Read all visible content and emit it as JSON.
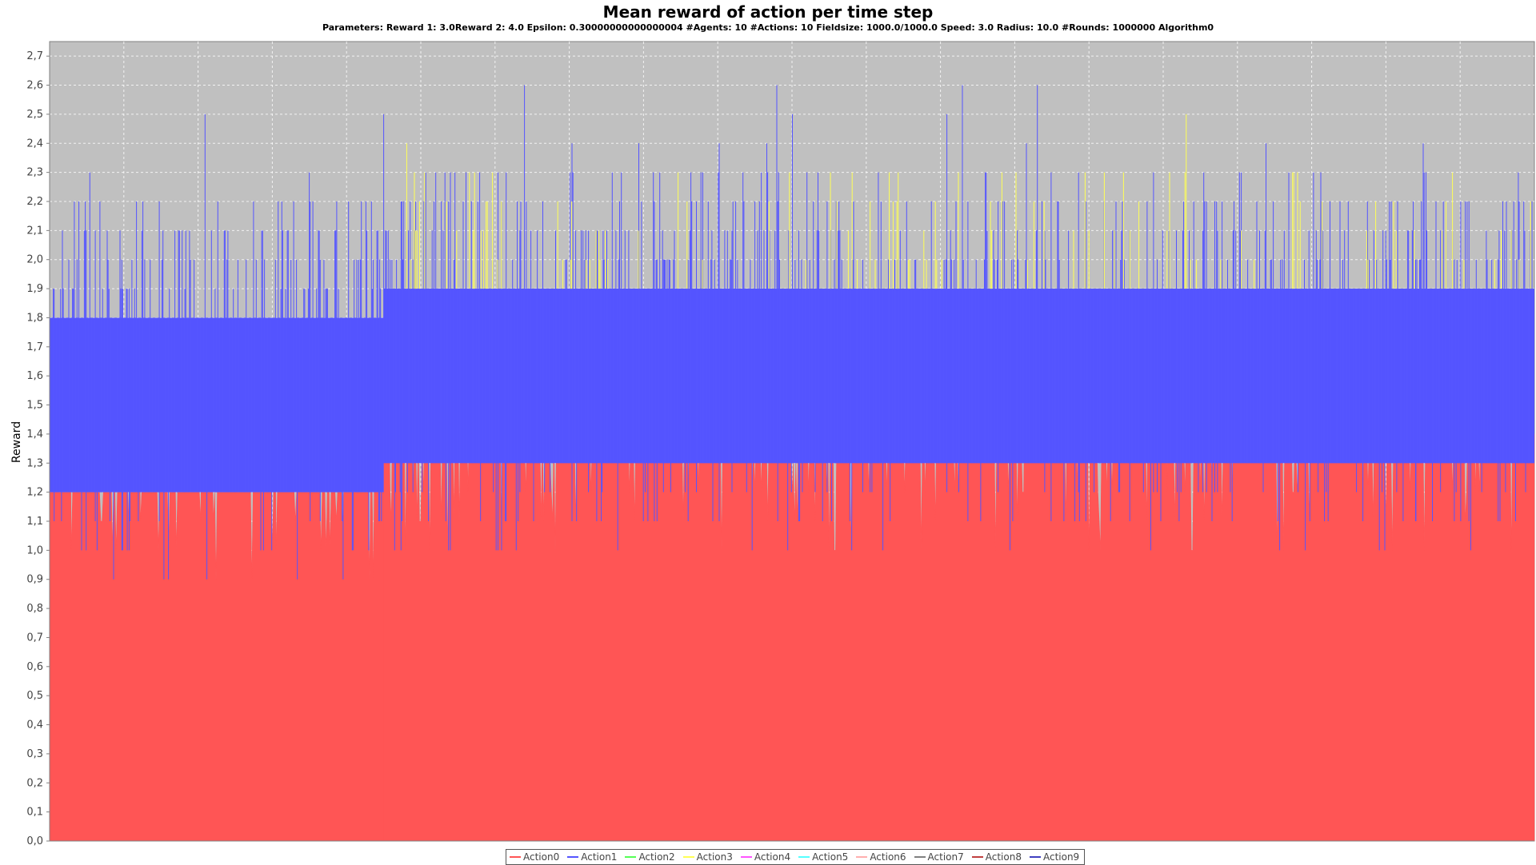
{
  "chart_data": {
    "type": "area",
    "title": "Mean reward of action per time step",
    "subtitle": "Parameters: Reward 1: 3.0Reward 2: 4.0 Epsilon: 0.30000000000000004 #Agents: 10 #Actions: 10 Fieldsize: 1000.0/1000.0 Speed: 3.0 Radius: 10.0 #Rounds: 1000000 Algorithm0",
    "xlabel": "",
    "ylabel": "Reward",
    "ylim": [
      0,
      2.75
    ],
    "y_ticks": [
      "0,0",
      "0,1",
      "0,2",
      "0,3",
      "0,4",
      "0,5",
      "0,6",
      "0,7",
      "0,8",
      "0,9",
      "1,0",
      "1,1",
      "1,2",
      "1,3",
      "1,4",
      "1,5",
      "1,6",
      "1,7",
      "1,8",
      "1,9",
      "2,0",
      "2,1",
      "2,2",
      "2,3",
      "2,4",
      "2,5",
      "2,6",
      "2,7"
    ],
    "grid": true,
    "legend_placement": "bottom",
    "background_color": "#c0c0c0",
    "series": [
      {
        "name": "Action0",
        "color": "#ff5555",
        "band_segments": [
          {
            "x": [
              0,
              0.225
            ],
            "lower": 0.9,
            "upper": 1.5,
            "typical": 1.2
          },
          {
            "x": [
              0.225,
              1.0
            ],
            "lower": 1.0,
            "upper": 1.7,
            "typical": 1.35
          }
        ]
      },
      {
        "name": "Action1",
        "color": "#5555ff",
        "band_segments": [
          {
            "x": [
              0,
              0.225
            ],
            "lower": 1.2,
            "upper": 2.2,
            "typical_low": 1.2,
            "typical_high": 1.8,
            "peak": 2.5
          },
          {
            "x": [
              0.225,
              1.0
            ],
            "lower": 1.3,
            "upper": 2.3,
            "typical_low": 1.3,
            "typical_high": 1.9,
            "peak": 2.6
          }
        ]
      },
      {
        "name": "Action2",
        "color": "#55ff55",
        "band_segments": []
      },
      {
        "name": "Action3",
        "color": "#ffff55",
        "band_segments": [
          {
            "x": [
              0.225,
              1.0
            ],
            "lower": 1.9,
            "upper": 2.3,
            "peak": 2.5
          }
        ]
      },
      {
        "name": "Action4",
        "color": "#ff55ff",
        "band_segments": []
      },
      {
        "name": "Action5",
        "color": "#55ffff",
        "band_segments": []
      },
      {
        "name": "Action6",
        "color": "#ffafaf",
        "band_segments": []
      },
      {
        "name": "Action7",
        "color": "#808080",
        "band_segments": []
      },
      {
        "name": "Action8",
        "color": "#c04040",
        "band_segments": []
      },
      {
        "name": "Action9",
        "color": "#4040c0",
        "band_segments": []
      }
    ],
    "x_extent_fraction_with_data": [
      0,
      0.92
    ]
  }
}
